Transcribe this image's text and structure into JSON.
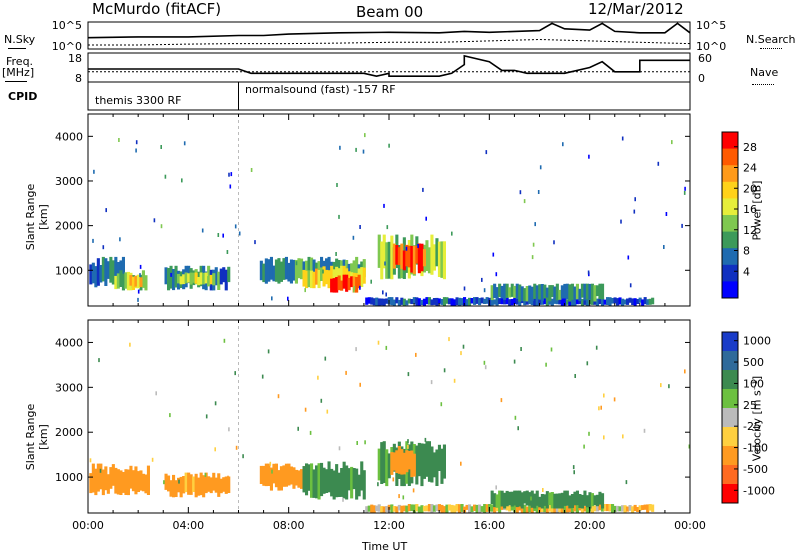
{
  "header": {
    "station": "McMurdo (fitACF)",
    "beam": "Beam 00",
    "date": "12/Mar/2012"
  },
  "side_labels": {
    "nsky": "N.Sky",
    "freq_top": "Freq.",
    "freq_unit": "[MHz]",
    "cpid": "CPID",
    "nsearch": "N.Search",
    "nave": "Nave",
    "nsky_ticks": [
      "10^5",
      "10^0"
    ],
    "nsearch_ticks": [
      "10^5",
      "10^0"
    ],
    "freq_ticks": [
      "18",
      "8"
    ],
    "nave_ticks": [
      "60",
      "0"
    ]
  },
  "cpid_segments": [
    {
      "label": "themis 3300 RF",
      "start_h": 0,
      "end_h": 6
    },
    {
      "label": "normalsound (fast) -157 RF",
      "start_h": 6,
      "end_h": 24
    }
  ],
  "power_colorbar": {
    "label": "Power [dB]",
    "ticks": [
      "28",
      "24",
      "20",
      "16",
      "12",
      "8",
      "4"
    ],
    "colors": [
      "#ff0000",
      "#ff5a00",
      "#ff9a1a",
      "#ffd21a",
      "#e6ee3a",
      "#7fc850",
      "#3c9a5a",
      "#1f6bb0",
      "#1030c0",
      "#0000ff"
    ]
  },
  "velocity_colorbar": {
    "label": "Velocity [m s⁻¹]",
    "ticks": [
      "1000",
      "500",
      "100",
      "25",
      "-25",
      "-100",
      "-500",
      "-1000"
    ],
    "colors": [
      "#1a3cc8",
      "#2f6a9a",
      "#3c8a50",
      "#6cc040",
      "#bbbbbb",
      "#ffd040",
      "#ff9a20",
      "#ff6a20",
      "#ff0000"
    ]
  },
  "chart_data": [
    {
      "type": "line",
      "title": "",
      "xlabel": "",
      "ylabel": "",
      "series": [
        {
          "name": "N.Sky",
          "x": [
            0,
            2,
            4,
            6,
            7,
            8,
            10,
            12,
            14,
            15,
            16,
            18,
            18.5,
            19,
            20,
            20.5,
            21,
            22,
            23,
            23.5,
            24
          ],
          "y": [
            0.42,
            0.45,
            0.45,
            0.5,
            0.5,
            0.55,
            0.6,
            0.62,
            0.6,
            0.65,
            0.62,
            0.68,
            0.95,
            0.75,
            0.7,
            0.95,
            0.65,
            0.6,
            0.6,
            0.95,
            0.6
          ]
        },
        {
          "name": "N.Search",
          "x": [
            0,
            2,
            4,
            6,
            8,
            10,
            12,
            14,
            16,
            18,
            20,
            22,
            24
          ],
          "y": [
            0.15,
            0.15,
            0.18,
            0.2,
            0.2,
            0.22,
            0.25,
            0.25,
            0.3,
            0.35,
            0.3,
            0.25,
            0.2
          ]
        }
      ]
    },
    {
      "type": "line",
      "title": "",
      "xlabel": "",
      "ylabel": "Freq. [MHz]",
      "series": [
        {
          "name": "Freq",
          "x": [
            0,
            6,
            6.5,
            11,
            11.5,
            12,
            12,
            14,
            14.5,
            15,
            15,
            16,
            16.5,
            17,
            17.5,
            18,
            19,
            20,
            20.5,
            21,
            22,
            22,
            24
          ],
          "y": [
            0.45,
            0.45,
            0.3,
            0.3,
            0.2,
            0.3,
            0.2,
            0.2,
            0.3,
            0.6,
            0.9,
            0.7,
            0.4,
            0.4,
            0.3,
            0.3,
            0.3,
            0.5,
            0.7,
            0.35,
            0.35,
            0.75,
            0.75
          ]
        },
        {
          "name": "Nave",
          "x": [
            0,
            24
          ],
          "y": [
            0.35,
            0.35
          ]
        }
      ]
    },
    {
      "type": "heatmap",
      "title": "",
      "xlabel": "",
      "ylabel": "Slant Range [km]",
      "xlim": [
        0,
        24
      ],
      "ylim": [
        200,
        4500
      ],
      "z_label": "Power [dB]",
      "z_range": [
        0,
        30
      ],
      "blobs": [
        {
          "x0": 0.0,
          "x1": 1.4,
          "y0": 600,
          "y1": 1300,
          "v": 8
        },
        {
          "x0": 1.0,
          "x1": 2.3,
          "y0": 550,
          "y1": 1000,
          "v": 14
        },
        {
          "x0": 1.6,
          "x1": 2.1,
          "y0": 550,
          "y1": 900,
          "v": 20
        },
        {
          "x0": 3.0,
          "x1": 5.6,
          "y0": 550,
          "y1": 1100,
          "v": 9
        },
        {
          "x0": 3.5,
          "x1": 5.0,
          "y0": 650,
          "y1": 950,
          "v": 16
        },
        {
          "x0": 6.8,
          "x1": 11.0,
          "y0": 700,
          "y1": 1300,
          "v": 10
        },
        {
          "x0": 8.5,
          "x1": 11.0,
          "y0": 600,
          "y1": 1100,
          "v": 18
        },
        {
          "x0": 9.6,
          "x1": 10.8,
          "y0": 500,
          "y1": 900,
          "v": 26
        },
        {
          "x0": 11.5,
          "x1": 14.2,
          "y0": 800,
          "y1": 1800,
          "v": 14
        },
        {
          "x0": 12.1,
          "x1": 13.4,
          "y0": 900,
          "y1": 1600,
          "v": 25
        },
        {
          "x0": 11.0,
          "x1": 22.5,
          "y0": 200,
          "y1": 400,
          "v": 6
        },
        {
          "x0": 16.0,
          "x1": 20.5,
          "y0": 300,
          "y1": 700,
          "v": 10
        }
      ]
    },
    {
      "type": "heatmap",
      "title": "",
      "xlabel": "Time UT",
      "ylabel": "Slant Range [km]",
      "xlim": [
        0,
        24
      ],
      "ylim": [
        200,
        4500
      ],
      "z_label": "Velocity [m s-1]",
      "z_range": [
        -1000,
        1000
      ],
      "x_ticks": [
        "00:00",
        "04:00",
        "08:00",
        "12:00",
        "16:00",
        "20:00",
        "00:00"
      ],
      "y_ticks": [
        "1000",
        "2000",
        "3000",
        "4000"
      ],
      "blobs": [
        {
          "x0": 0.0,
          "x1": 2.4,
          "y0": 600,
          "y1": 1300,
          "v": -300
        },
        {
          "x0": 3.0,
          "x1": 5.6,
          "y0": 550,
          "y1": 1100,
          "v": -200
        },
        {
          "x0": 6.8,
          "x1": 8.8,
          "y0": 700,
          "y1": 1300,
          "v": -300
        },
        {
          "x0": 8.5,
          "x1": 11.0,
          "y0": 500,
          "y1": 1350,
          "v": 200
        },
        {
          "x0": 11.5,
          "x1": 14.2,
          "y0": 800,
          "y1": 1800,
          "v": 200
        },
        {
          "x0": 12.0,
          "x1": 13.0,
          "y0": 1000,
          "y1": 1700,
          "v": -300
        },
        {
          "x0": 11.0,
          "x1": 22.5,
          "y0": 200,
          "y1": 400,
          "v": -60
        },
        {
          "x0": 16.0,
          "x1": 20.5,
          "y0": 300,
          "y1": 700,
          "v": 200
        }
      ]
    }
  ],
  "x_axis": {
    "label": "Time UT",
    "ticks": [
      "00:00",
      "04:00",
      "08:00",
      "12:00",
      "16:00",
      "20:00",
      "00:00"
    ]
  },
  "y_axis": {
    "label": "Slant Range [km]",
    "ticks": [
      "1000",
      "2000",
      "3000",
      "4000"
    ]
  }
}
